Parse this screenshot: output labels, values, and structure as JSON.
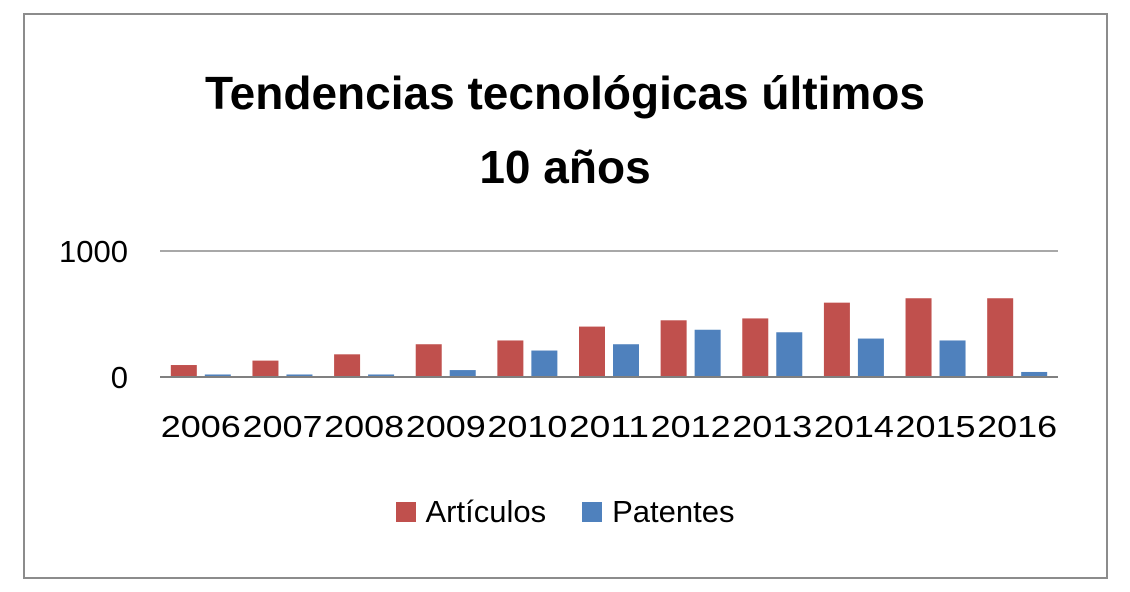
{
  "chart_data": {
    "type": "bar",
    "title_lines": [
      "Tendencias tecnológicas últimos",
      "10 años"
    ],
    "xlabel": "",
    "ylabel": "",
    "categories": [
      "2006",
      "2007",
      "2008",
      "2009",
      "2010",
      "2011",
      "2012",
      "2013",
      "2014",
      "2015",
      "2016"
    ],
    "series": [
      {
        "name": "Artículos",
        "color": "#c0504d",
        "values": [
          95,
          130,
          180,
          260,
          290,
          400,
          450,
          465,
          590,
          625,
          625
        ]
      },
      {
        "name": "Patentes",
        "color": "#4f81bd",
        "values": [
          20,
          20,
          20,
          55,
          210,
          260,
          375,
          355,
          305,
          290,
          40
        ]
      }
    ],
    "ylim": [
      0,
      1000
    ],
    "yticks": [
      "0",
      "1000"
    ],
    "grid": true,
    "legend": "bottom"
  }
}
